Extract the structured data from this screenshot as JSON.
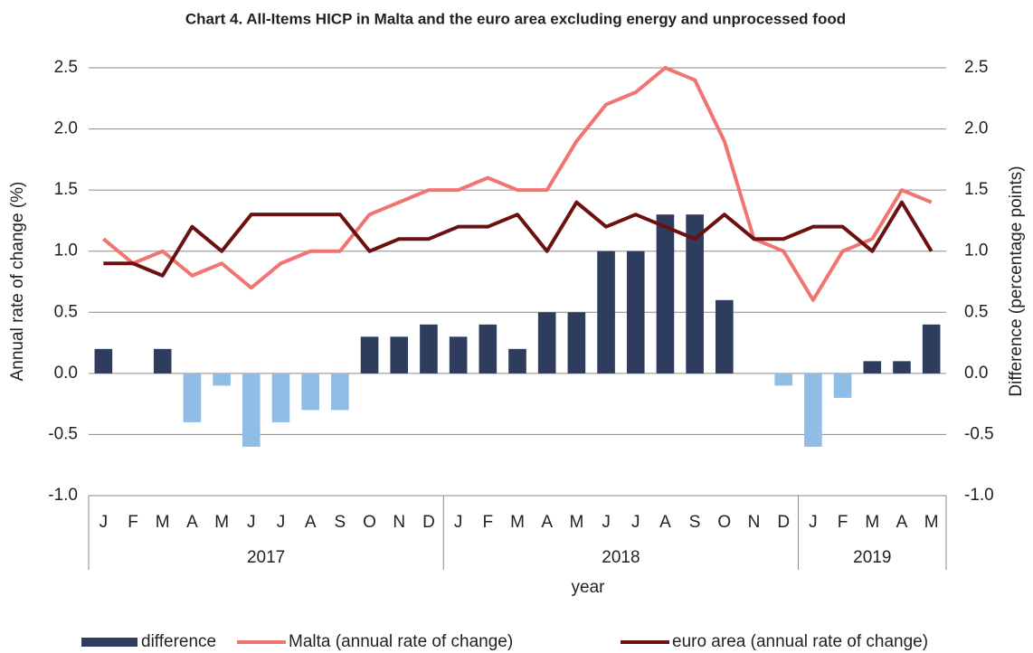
{
  "chart_data": {
    "type": "bar-line",
    "title": "Chart 4. All-Items HICP in Malta and the euro area excluding energy and unprocessed food",
    "xlabel": "year",
    "ylabel": "Annual rate of change (%)",
    "y2label": "Difference (percentage points)",
    "category_groups": [
      {
        "label": "2017",
        "categories": [
          "J",
          "F",
          "M",
          "A",
          "M",
          "J",
          "J",
          "A",
          "S",
          "O",
          "N",
          "D"
        ]
      },
      {
        "label": "2018",
        "categories": [
          "J",
          "F",
          "M",
          "A",
          "M",
          "J",
          "J",
          "A",
          "S",
          "O",
          "N",
          "D"
        ]
      },
      {
        "label": "2019",
        "categories": [
          "J",
          "F",
          "M",
          "A",
          "M"
        ]
      }
    ],
    "series": [
      {
        "name": "difference",
        "type": "bar",
        "axis": "y2",
        "color": "#2e3c5e",
        "negative_color": "#8fbde6",
        "values": [
          0.2,
          0,
          0.2,
          -0.4,
          -0.1,
          -0.6,
          -0.4,
          -0.3,
          -0.3,
          0.3,
          0.3,
          0.4,
          0.3,
          0.4,
          0.2,
          0.5,
          0.5,
          1.0,
          1.0,
          1.3,
          1.3,
          0.6,
          0,
          -0.1,
          -0.6,
          -0.2,
          0.1,
          0.1,
          0.4
        ]
      },
      {
        "name": "Malta (annual rate of change)",
        "type": "line",
        "axis": "y",
        "color": "#f07470",
        "values": [
          1.1,
          0.9,
          1.0,
          0.8,
          0.9,
          0.7,
          0.9,
          1.0,
          1.0,
          1.3,
          1.4,
          1.5,
          1.5,
          1.6,
          1.5,
          1.5,
          1.9,
          2.2,
          2.3,
          2.5,
          2.4,
          1.9,
          1.1,
          1.0,
          0.6,
          1.0,
          1.1,
          1.5,
          1.4
        ]
      },
      {
        "name": "euro area (annual rate of change)",
        "type": "line",
        "axis": "y",
        "color": "#6b1010",
        "values": [
          0.9,
          0.9,
          0.8,
          1.2,
          1.0,
          1.3,
          1.3,
          1.3,
          1.3,
          1.0,
          1.1,
          1.1,
          1.2,
          1.2,
          1.3,
          1.0,
          1.4,
          1.2,
          1.3,
          1.2,
          1.1,
          1.3,
          1.1,
          1.1,
          1.2,
          1.2,
          1.0,
          1.4,
          1.0
        ]
      }
    ],
    "ylim": [
      -1.0,
      2.5
    ],
    "yticks": [
      {
        "value": -1.0,
        "label": "-1.0"
      },
      -0.5,
      {
        "value": 0.0,
        "label": "0.0"
      },
      0.5,
      {
        "value": 1.0,
        "label": "1.0"
      },
      1.5,
      {
        "value": 2.0,
        "label": "2.0"
      },
      2.5
    ],
    "y2lim": [
      -1.0,
      2.5
    ],
    "y2ticks": [
      {
        "value": -1.0,
        "label": "-1.0"
      },
      -0.5,
      {
        "value": 0.0,
        "label": "0.0"
      },
      0.5,
      {
        "value": 1.0,
        "label": "1.0"
      },
      1.5,
      {
        "value": 2.0,
        "label": "2.0"
      },
      2.5
    ],
    "grid": true,
    "legend": "bottom"
  }
}
